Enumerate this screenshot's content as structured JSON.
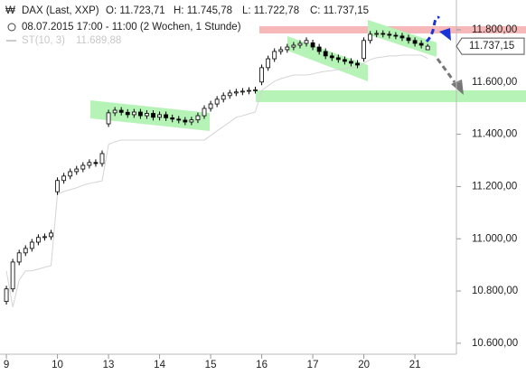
{
  "chart_data": {
    "type": "candlestick",
    "title": "DAX (Last, XXP)",
    "ohlc_labels": [
      "O: 11.723,71",
      "H: 11.745,78",
      "L: 11.722,78",
      "C: 11.737,15"
    ],
    "subtitle": "08.07.2015 17:00 - 11:00 (2 Wochen, 1 Stunde)",
    "x": [
      0,
      1,
      2,
      3,
      4,
      5,
      6,
      7,
      8,
      9,
      10,
      11,
      12,
      13,
      14,
      15,
      16,
      17,
      18,
      19,
      20,
      21,
      22,
      23,
      24,
      25,
      26,
      27,
      28,
      29,
      30,
      31,
      32,
      33,
      34,
      35,
      36,
      37,
      38,
      39,
      40,
      41,
      42,
      43,
      44,
      45,
      46,
      47,
      48,
      49,
      50,
      51,
      52,
      53,
      54,
      55,
      56,
      57,
      58,
      59,
      60,
      61,
      62,
      63,
      64,
      65,
      66
    ],
    "open": [
      10760,
      10808,
      10911,
      10946,
      10963,
      10987,
      11005,
      11008,
      11180,
      11223,
      11240,
      11257,
      11267,
      11281,
      11292,
      11288,
      11440,
      11482,
      11492,
      11484,
      11475,
      11485,
      11471,
      11480,
      11465,
      11475,
      11463,
      11458,
      11454,
      11447,
      11455,
      11471,
      11499,
      11516,
      11534,
      11548,
      11558,
      11562,
      11565,
      11568,
      11600,
      11655,
      11689,
      11717,
      11724,
      11734,
      11741,
      11748,
      11750,
      11734,
      11717,
      11700,
      11693,
      11686,
      11679,
      11672,
      11690,
      11759,
      11783,
      11786,
      11783,
      11779,
      11776,
      11769,
      11759,
      11748,
      11723.71
    ],
    "high": [
      10820,
      10923,
      10958,
      10975,
      10999,
      11017,
      11020,
      11034,
      11235,
      11252,
      11269,
      11279,
      11293,
      11304,
      11304,
      11338,
      11494,
      11504,
      11504,
      11496,
      11497,
      11497,
      11492,
      11492,
      11487,
      11487,
      11475,
      11470,
      11466,
      11467,
      11483,
      11511,
      11528,
      11546,
      11560,
      11570,
      11574,
      11577,
      11580,
      11582,
      11667,
      11701,
      11729,
      11736,
      11746,
      11753,
      11760,
      11771,
      11762,
      11746,
      11729,
      11712,
      11705,
      11698,
      11691,
      11684,
      11771,
      11795,
      11798,
      11798,
      11795,
      11791,
      11788,
      11781,
      11771,
      11760,
      11745.78
    ],
    "low": [
      10748,
      10796,
      10899,
      10934,
      10951,
      10975,
      10993,
      10996,
      11168,
      11211,
      11228,
      11245,
      11255,
      11269,
      11276,
      11276,
      11428,
      11470,
      11472,
      11463,
      11463,
      11459,
      11459,
      11453,
      11453,
      11451,
      11446,
      11442,
      11435,
      11435,
      11443,
      11459,
      11487,
      11504,
      11522,
      11536,
      11546,
      11550,
      11553,
      11556,
      11588,
      11643,
      11677,
      11705,
      11712,
      11722,
      11729,
      11736,
      11722,
      11705,
      11688,
      11681,
      11674,
      11667,
      11660,
      11653,
      11678,
      11747,
      11771,
      11771,
      11767,
      11764,
      11757,
      11747,
      11736,
      11729,
      11722.78
    ],
    "close": [
      10808,
      10911,
      10946,
      10963,
      10987,
      11005,
      11008,
      11022,
      11223,
      11240,
      11257,
      11267,
      11281,
      11292,
      11288,
      11326,
      11482,
      11492,
      11484,
      11475,
      11485,
      11471,
      11480,
      11465,
      11475,
      11463,
      11458,
      11454,
      11447,
      11455,
      11471,
      11499,
      11516,
      11534,
      11548,
      11558,
      11562,
      11565,
      11568,
      11570,
      11655,
      11689,
      11717,
      11724,
      11734,
      11741,
      11748,
      11759,
      11734,
      11717,
      11700,
      11693,
      11686,
      11679,
      11672,
      11665,
      11759,
      11783,
      11786,
      11783,
      11779,
      11776,
      11769,
      11759,
      11748,
      11741,
      11737.15
    ],
    "last_price_label": "11.737,15",
    "series": [
      {
        "name": "ST(10, 3)",
        "color": "#d4d4d4",
        "label": "11.689,88",
        "values": [
          10877,
          10738,
          10842,
          10877,
          10877,
          10884,
          10891,
          10897,
          11171,
          11181,
          11188,
          11195,
          11205,
          11212,
          11216,
          11222,
          11361,
          11371,
          11378,
          11378,
          11378,
          11378,
          11378,
          11378,
          11378,
          11378,
          11378,
          11378,
          11378,
          11378,
          11378,
          11378,
          11395,
          11413,
          11430,
          11447,
          11465,
          11471,
          11478,
          11485,
          11568,
          11586,
          11603,
          11613,
          11620,
          11627,
          11627,
          11627,
          11631,
          11637,
          11641,
          11644,
          11648,
          11651,
          11655,
          11655,
          11672,
          11686,
          11693,
          11696,
          11700,
          11700,
          11703,
          11703,
          11703,
          11703,
          11689.88
        ]
      }
    ],
    "xlim": [
      -1,
      70.5
    ],
    "xticks": [
      {
        "value": 0,
        "label": "9"
      },
      {
        "value": 8,
        "label": "10"
      },
      {
        "value": 16,
        "label": "13"
      },
      {
        "value": 24,
        "label": "14"
      },
      {
        "value": 32,
        "label": "15"
      },
      {
        "value": 40,
        "label": "16"
      },
      {
        "value": 48,
        "label": "17"
      },
      {
        "value": 56,
        "label": "20"
      },
      {
        "value": 64,
        "label": "21"
      }
    ],
    "ylim": [
      10558,
      11914
    ],
    "yticks": [
      {
        "value": 10600,
        "label": "10.600,00"
      },
      {
        "value": 10800,
        "label": "10.800,00"
      },
      {
        "value": 11000,
        "label": "11.000,00"
      },
      {
        "value": 11200,
        "label": "11.200,00"
      },
      {
        "value": 11400,
        "label": "11.400,00"
      },
      {
        "value": 11600,
        "label": "11.600,00"
      },
      {
        "value": 11800,
        "label": "11.800,00"
      }
    ],
    "up_color": "#ffffff",
    "down_color": "#000000"
  }
}
